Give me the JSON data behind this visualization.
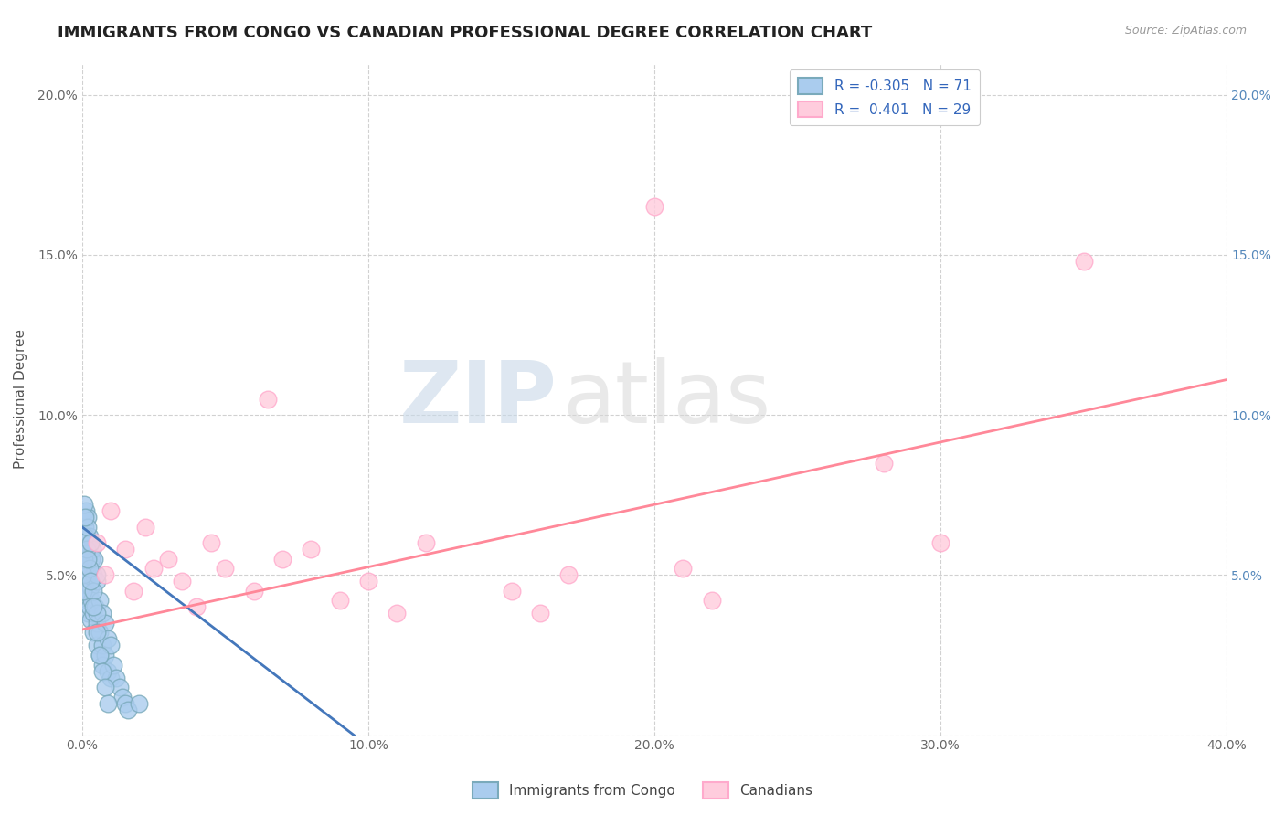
{
  "title": "IMMIGRANTS FROM CONGO VS CANADIAN PROFESSIONAL DEGREE CORRELATION CHART",
  "source_text": "Source: ZipAtlas.com",
  "ylabel": "Professional Degree",
  "xlim": [
    0.0,
    0.4
  ],
  "ylim": [
    0.0,
    0.21
  ],
  "xticks": [
    0.0,
    0.1,
    0.2,
    0.3,
    0.4
  ],
  "xtick_labels": [
    "0.0%",
    "10.0%",
    "20.0%",
    "30.0%",
    "40.0%"
  ],
  "yticks": [
    0.0,
    0.05,
    0.1,
    0.15,
    0.2
  ],
  "ytick_labels": [
    "",
    "5.0%",
    "10.0%",
    "15.0%",
    "20.0%"
  ],
  "right_ytick_labels": [
    "",
    "5.0%",
    "10.0%",
    "15.0%",
    "20.0%"
  ],
  "blue_R": -0.305,
  "blue_N": 71,
  "pink_R": 0.401,
  "pink_N": 29,
  "blue_line_color": "#4477BB",
  "pink_line_color": "#FF8899",
  "blue_fill_color": "#AACCEE",
  "pink_fill_color": "#FFCCDD",
  "blue_edge_color": "#7AAABB",
  "pink_edge_color": "#FFAACC",
  "blue_label": "Immigrants from Congo",
  "pink_label": "Canadians",
  "watermark": "ZIPatlas",
  "background_color": "#FFFFFF",
  "grid_color": "#CCCCCC",
  "title_fontsize": 13,
  "axis_label_fontsize": 11,
  "tick_fontsize": 10,
  "legend_fontsize": 11,
  "blue_scatter_x": [
    0.0005,
    0.0008,
    0.001,
    0.001,
    0.0012,
    0.0012,
    0.0015,
    0.0015,
    0.0018,
    0.0018,
    0.002,
    0.002,
    0.002,
    0.0022,
    0.0022,
    0.0025,
    0.0025,
    0.003,
    0.003,
    0.003,
    0.0032,
    0.0033,
    0.0035,
    0.004,
    0.004,
    0.004,
    0.0042,
    0.0045,
    0.005,
    0.005,
    0.005,
    0.0052,
    0.006,
    0.006,
    0.006,
    0.007,
    0.007,
    0.007,
    0.008,
    0.008,
    0.009,
    0.009,
    0.01,
    0.01,
    0.011,
    0.012,
    0.013,
    0.014,
    0.015,
    0.016,
    0.0003,
    0.0005,
    0.0007,
    0.001,
    0.0015,
    0.002,
    0.0025,
    0.003,
    0.004,
    0.005,
    0.0008,
    0.001,
    0.002,
    0.003,
    0.004,
    0.005,
    0.006,
    0.007,
    0.008,
    0.009,
    0.02
  ],
  "blue_scatter_y": [
    0.055,
    0.06,
    0.065,
    0.052,
    0.07,
    0.048,
    0.058,
    0.045,
    0.062,
    0.042,
    0.068,
    0.05,
    0.038,
    0.058,
    0.044,
    0.062,
    0.04,
    0.06,
    0.046,
    0.036,
    0.055,
    0.042,
    0.058,
    0.05,
    0.038,
    0.032,
    0.055,
    0.04,
    0.048,
    0.035,
    0.028,
    0.05,
    0.042,
    0.032,
    0.025,
    0.038,
    0.028,
    0.022,
    0.035,
    0.025,
    0.03,
    0.02,
    0.028,
    0.018,
    0.022,
    0.018,
    0.015,
    0.012,
    0.01,
    0.008,
    0.05,
    0.045,
    0.055,
    0.062,
    0.058,
    0.065,
    0.052,
    0.06,
    0.045,
    0.038,
    0.072,
    0.068,
    0.055,
    0.048,
    0.04,
    0.032,
    0.025,
    0.02,
    0.015,
    0.01,
    0.01
  ],
  "pink_scatter_x": [
    0.005,
    0.008,
    0.01,
    0.015,
    0.018,
    0.022,
    0.025,
    0.03,
    0.035,
    0.04,
    0.045,
    0.05,
    0.06,
    0.065,
    0.07,
    0.08,
    0.09,
    0.1,
    0.11,
    0.12,
    0.15,
    0.16,
    0.17,
    0.2,
    0.21,
    0.22,
    0.35,
    0.28,
    0.3
  ],
  "pink_scatter_y": [
    0.06,
    0.05,
    0.07,
    0.058,
    0.045,
    0.065,
    0.052,
    0.055,
    0.048,
    0.04,
    0.06,
    0.052,
    0.045,
    0.105,
    0.055,
    0.058,
    0.042,
    0.048,
    0.038,
    0.06,
    0.045,
    0.038,
    0.05,
    0.165,
    0.052,
    0.042,
    0.148,
    0.085,
    0.06
  ],
  "blue_trendline_x": [
    0.0,
    0.095
  ],
  "blue_trendline_y": [
    0.065,
    0.0
  ],
  "pink_trendline_x": [
    0.0,
    0.4
  ],
  "pink_trendline_y": [
    0.033,
    0.111
  ]
}
